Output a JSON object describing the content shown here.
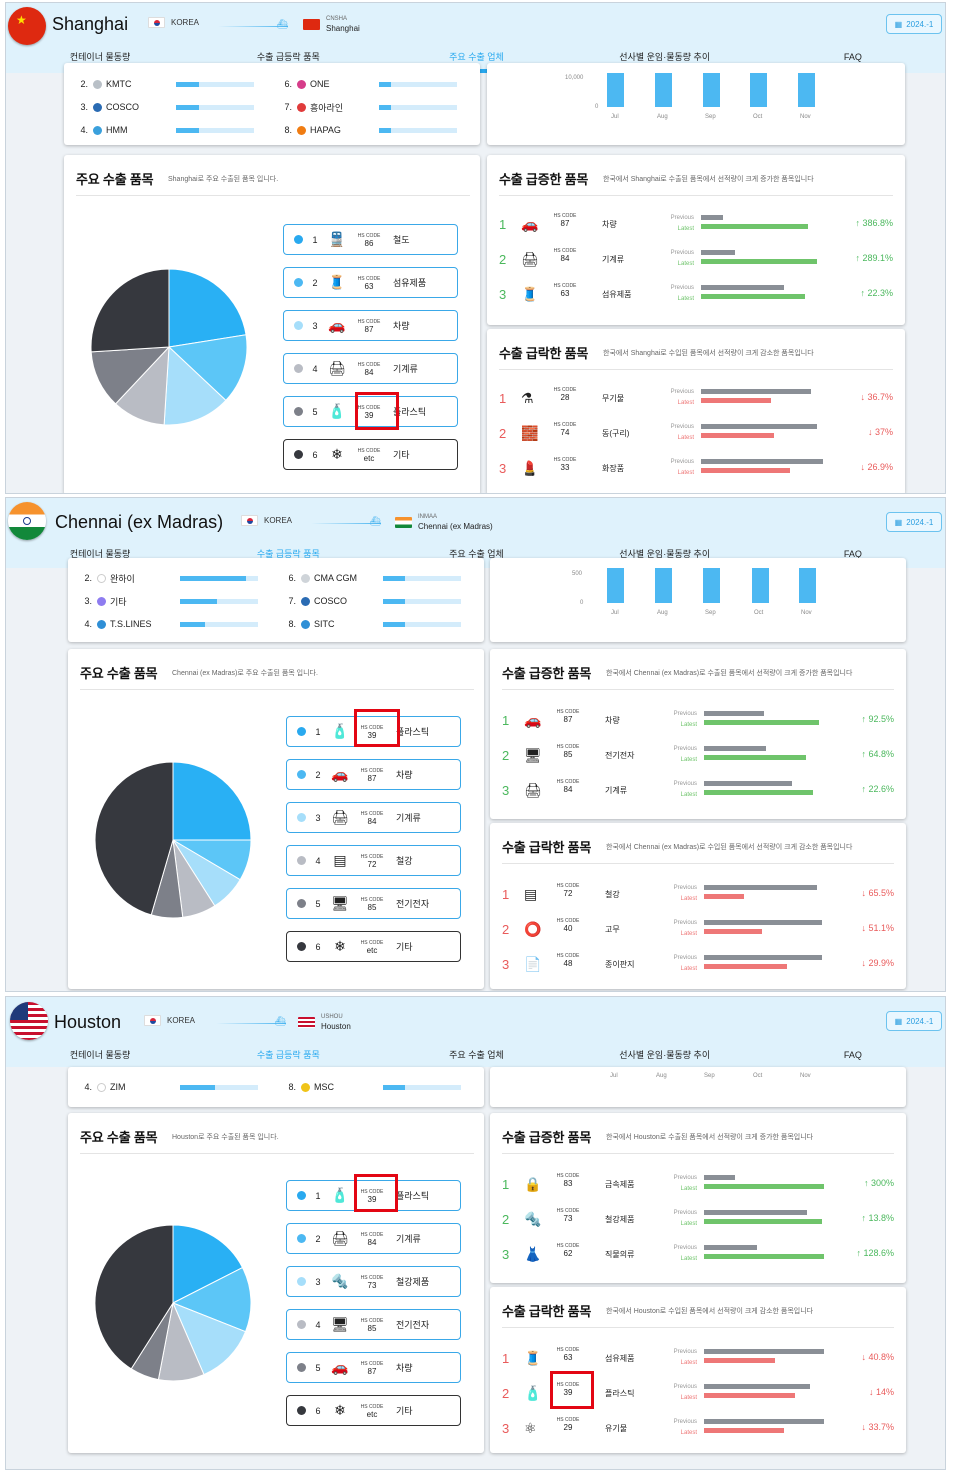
{
  "common": {
    "origin": "KOREA",
    "badge": "2024.-1",
    "ship": "⛴",
    "tabs": [
      "컨테이너 물동량",
      "수출 급등락 품목",
      "주요 수출 업체",
      "선사별 운임·물동량 추이",
      "FAQ"
    ],
    "hs_label": "HS CODE",
    "prev": "Previous",
    "latest": "Latest",
    "months": [
      "Jul",
      "Aug",
      "Sep",
      "Oct",
      "Nov"
    ],
    "main_title": "주요 수출 품목",
    "rise_title": "수출 급증한 품목",
    "fall_title": "수출 급락한 품목"
  },
  "shanghai": {
    "city": "Shanghai",
    "dest_code": "CNSHA",
    "dest_name": "Shanghai",
    "active_tab": 2,
    "carriers": [
      {
        "n": "2.",
        "name": "KMTC",
        "color": "#b9c0c7",
        "v": 0.3
      },
      {
        "n": "3.",
        "name": "COSCO",
        "color": "#2a6bb3",
        "v": 0.3
      },
      {
        "n": "4.",
        "name": "HMM",
        "color": "#3aa0dc",
        "v": 0.3
      },
      {
        "n": "6.",
        "name": "ONE",
        "color": "#d63d8a",
        "v": 0.15
      },
      {
        "n": "7.",
        "name": "흥아라인",
        "color": "#e03b3b",
        "v": 0.15
      },
      {
        "n": "8.",
        "name": "HAPAG",
        "color": "#f07c12",
        "v": 0.15
      }
    ],
    "axis": [
      "10,000",
      "0"
    ],
    "bars": [
      0.9,
      0.9,
      0.9,
      0.9,
      0.9
    ],
    "main_sub": "Shanghai로 주요 수출된 품목 입니다.",
    "pie": [
      {
        "v": 22.5,
        "c": "#29b0f4"
      },
      {
        "v": 14.5,
        "c": "#5cc6f7"
      },
      {
        "v": 14,
        "c": "#a6defa"
      },
      {
        "v": 11,
        "c": "#b9bcc4"
      },
      {
        "v": 12,
        "c": "#7d8089"
      },
      {
        "v": 26,
        "c": "#36383e"
      }
    ],
    "items": [
      {
        "rk": "1",
        "icon": "🚆",
        "code": "86",
        "name": "철도",
        "dot": "#29a9ef"
      },
      {
        "rk": "2",
        "icon": "🧵",
        "code": "63",
        "name": "섬유제품",
        "dot": "#4cb8f2"
      },
      {
        "rk": "3",
        "icon": "🚗",
        "code": "87",
        "name": "차량",
        "dot": "#a6defa"
      },
      {
        "rk": "4",
        "icon": "🖨",
        "code": "84",
        "name": "기계류",
        "dot": "#b9bcc4"
      },
      {
        "rk": "5",
        "icon": "🧴",
        "code": "39",
        "name": "플라스틱",
        "dot": "#7d8089"
      },
      {
        "rk": "6",
        "icon": "❄",
        "code": "etc",
        "name": "기타",
        "dot": "#36383e"
      }
    ],
    "rise_sub": "한국에서 Shanghai로 수출된 품목에서 선적량이 크게 증가한 품목입니다",
    "rise": [
      {
        "rk": "1",
        "icon": "🚗",
        "code": "87",
        "name": "차량",
        "p": 0.18,
        "l": 0.88,
        "pct": "↑ 386.8%"
      },
      {
        "rk": "2",
        "icon": "🖨",
        "code": "84",
        "name": "기계류",
        "p": 0.28,
        "l": 0.95,
        "pct": "↑ 289.1%"
      },
      {
        "rk": "3",
        "icon": "🧵",
        "code": "63",
        "name": "섬유제품",
        "p": 0.68,
        "l": 0.85,
        "pct": "↑ 22.3%"
      }
    ],
    "fall_sub": "한국에서 Shanghai로 수입된 품목에서 선적량이 크게 감소한 품목입니다",
    "fall": [
      {
        "rk": "1",
        "icon": "⚗",
        "code": "28",
        "name": "무기물",
        "p": 0.9,
        "l": 0.57,
        "pct": "↓ 36.7%"
      },
      {
        "rk": "2",
        "icon": "🧱",
        "code": "74",
        "name": "동(구리)",
        "p": 0.95,
        "l": 0.6,
        "pct": "↓ 37%"
      },
      {
        "rk": "3",
        "icon": "💄",
        "code": "33",
        "name": "화장품",
        "p": 1.0,
        "l": 0.73,
        "pct": "↓ 26.9%"
      }
    ]
  },
  "chennai": {
    "city": "Chennai (ex Madras)",
    "dest_code": "INMAA",
    "dest_name": "Chennai (ex Madras)",
    "active_tab": 1,
    "carriers": [
      {
        "n": "2.",
        "name": "완하이",
        "color": "#ffffff",
        "v": 0.84
      },
      {
        "n": "3.",
        "name": "기타",
        "color": "#8e7cf0",
        "v": 0.48
      },
      {
        "n": "4.",
        "name": "T.S.LINES",
        "color": "#2f8fd6",
        "v": 0.32
      },
      {
        "n": "6.",
        "name": "CMA CGM",
        "color": "#cfd4d9",
        "v": 0.28
      },
      {
        "n": "7.",
        "name": "COSCO",
        "color": "#2a6bb3",
        "v": 0.28
      },
      {
        "n": "8.",
        "name": "SITC",
        "color": "#2f8fd6",
        "v": 0.28
      }
    ],
    "axis": [
      "500",
      "0"
    ],
    "bars": [
      0.9,
      0.9,
      0.9,
      0.9,
      0.9
    ],
    "main_sub": "Chennai (ex Madras)로 주요 수출된 품목 입니다.",
    "pie": [
      {
        "v": 25,
        "c": "#29b0f4"
      },
      {
        "v": 8.5,
        "c": "#5cc6f7"
      },
      {
        "v": 7.5,
        "c": "#a6defa"
      },
      {
        "v": 7,
        "c": "#b9bcc4"
      },
      {
        "v": 6.5,
        "c": "#7d8089"
      },
      {
        "v": 45.5,
        "c": "#36383e"
      }
    ],
    "items": [
      {
        "rk": "1",
        "icon": "🧴",
        "code": "39",
        "name": "플라스틱",
        "dot": "#29a9ef"
      },
      {
        "rk": "2",
        "icon": "🚗",
        "code": "87",
        "name": "차량",
        "dot": "#4cb8f2"
      },
      {
        "rk": "3",
        "icon": "🖨",
        "code": "84",
        "name": "기계류",
        "dot": "#a6defa"
      },
      {
        "rk": "4",
        "icon": "▤",
        "code": "72",
        "name": "철강",
        "dot": "#b9bcc4"
      },
      {
        "rk": "5",
        "icon": "🖥",
        "code": "85",
        "name": "전기전자",
        "dot": "#7d8089"
      },
      {
        "rk": "6",
        "icon": "❄",
        "code": "etc",
        "name": "기타",
        "dot": "#36383e"
      }
    ],
    "rise_sub": "한국에서 Chennai (ex Madras)로 수출된 품목에서 선적량이 크게 증가한 품목입니다",
    "rise": [
      {
        "rk": "1",
        "icon": "🚗",
        "code": "87",
        "name": "차량",
        "p": 0.5,
        "l": 0.96,
        "pct": "↑ 92.5%"
      },
      {
        "rk": "2",
        "icon": "🖥",
        "code": "85",
        "name": "전기전자",
        "p": 0.52,
        "l": 0.85,
        "pct": "↑ 64.8%"
      },
      {
        "rk": "3",
        "icon": "🖨",
        "code": "84",
        "name": "기계류",
        "p": 0.73,
        "l": 0.91,
        "pct": "↑ 22.6%"
      }
    ],
    "fall_sub": "한국에서 Chennai (ex Madras)로 수입된 품목에서 선적량이 크게 감소한 품목입니다",
    "fall": [
      {
        "rk": "1",
        "icon": "▤",
        "code": "72",
        "name": "철강",
        "p": 0.94,
        "l": 0.33,
        "pct": "↓ 65.5%"
      },
      {
        "rk": "2",
        "icon": "⭕",
        "code": "40",
        "name": "고무",
        "p": 0.98,
        "l": 0.48,
        "pct": "↓ 51.1%"
      },
      {
        "rk": "3",
        "icon": "📄",
        "code": "48",
        "name": "종이판지",
        "p": 0.98,
        "l": 0.69,
        "pct": "↓ 29.9%"
      }
    ]
  },
  "houston": {
    "city": "Houston",
    "dest_code": "USHOU",
    "dest_name": "Houston",
    "active_tab": 1,
    "carriers": [
      {
        "n": "4.",
        "name": "ZIM",
        "color": "#ffffff",
        "v": 0.45
      },
      {
        "n": "8.",
        "name": "MSC",
        "color": "#f0c419",
        "v": 0.28
      }
    ],
    "main_sub": "Houston로 주요 수출된 품목 입니다.",
    "pie": [
      {
        "v": 17.5,
        "c": "#29b0f4"
      },
      {
        "v": 13.5,
        "c": "#5cc6f7"
      },
      {
        "v": 12.5,
        "c": "#a6defa"
      },
      {
        "v": 9.5,
        "c": "#b9bcc4"
      },
      {
        "v": 6,
        "c": "#7d8089"
      },
      {
        "v": 41,
        "c": "#36383e"
      }
    ],
    "items": [
      {
        "rk": "1",
        "icon": "🧴",
        "code": "39",
        "name": "플라스틱",
        "dot": "#29a9ef"
      },
      {
        "rk": "2",
        "icon": "🖨",
        "code": "84",
        "name": "기계류",
        "dot": "#4cb8f2"
      },
      {
        "rk": "3",
        "icon": "🔩",
        "code": "73",
        "name": "철강제품",
        "dot": "#a6defa"
      },
      {
        "rk": "4",
        "icon": "🖥",
        "code": "85",
        "name": "전기전자",
        "dot": "#b9bcc4"
      },
      {
        "rk": "5",
        "icon": "🚗",
        "code": "87",
        "name": "차량",
        "dot": "#7d8089"
      },
      {
        "rk": "6",
        "icon": "❄",
        "code": "etc",
        "name": "기타",
        "dot": "#36383e"
      }
    ],
    "rise_sub": "한국에서 Houston로 수출된 품목에서 선적량이 크게 증가한 품목입니다",
    "rise": [
      {
        "rk": "1",
        "icon": "🔒",
        "code": "83",
        "name": "금속제품",
        "p": 0.26,
        "l": 1.0,
        "pct": "↑ 300%"
      },
      {
        "rk": "2",
        "icon": "🔩",
        "code": "73",
        "name": "철강제품",
        "p": 0.86,
        "l": 0.98,
        "pct": "↑ 13.8%"
      },
      {
        "rk": "3",
        "icon": "👗",
        "code": "62",
        "name": "직물의류",
        "p": 0.44,
        "l": 1.0,
        "pct": "↑ 128.6%"
      }
    ],
    "fall_sub": "한국에서 Houston로 수입된 품목에서 선적량이 크게 감소한 품목입니다",
    "fall": [
      {
        "rk": "1",
        "icon": "🧵",
        "code": "63",
        "name": "섬유제품",
        "p": 1.0,
        "l": 0.59,
        "pct": "↓ 40.8%"
      },
      {
        "rk": "2",
        "icon": "🧴",
        "code": "39",
        "name": "플라스틱",
        "p": 0.88,
        "l": 0.76,
        "pct": "↓ 14%"
      },
      {
        "rk": "3",
        "icon": "⚛",
        "code": "29",
        "name": "유기물",
        "p": 1.0,
        "l": 0.67,
        "pct": "↓ 33.7%"
      }
    ]
  }
}
